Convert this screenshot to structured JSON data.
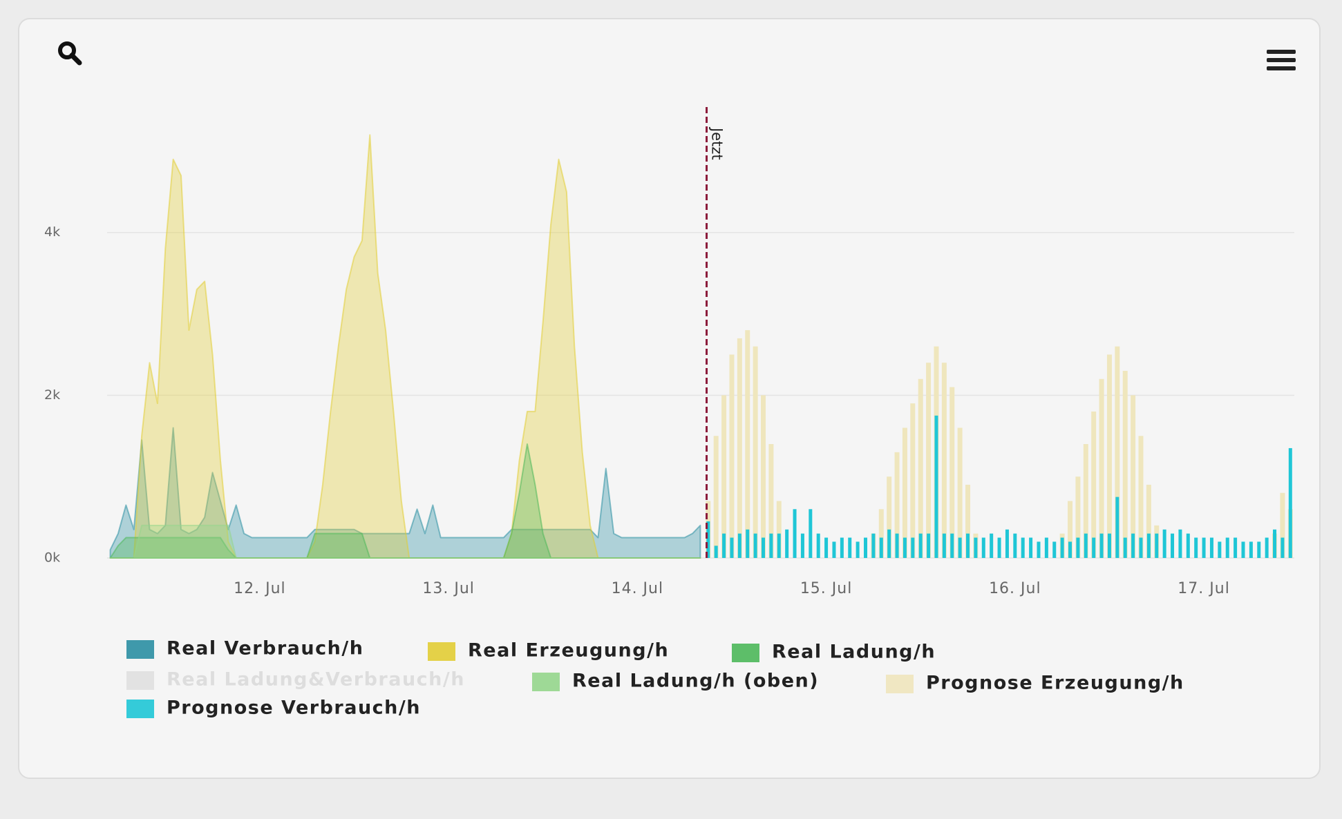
{
  "chart_data": {
    "type": "area",
    "xlim": [
      4.6,
      155.5
    ],
    "xticks": [
      {
        "value": 24,
        "label": "12. Jul"
      },
      {
        "value": 48,
        "label": "13. Jul"
      },
      {
        "value": 72,
        "label": "14. Jul"
      },
      {
        "value": 96,
        "label": "15. Jul"
      },
      {
        "value": 120,
        "label": "16. Jul"
      },
      {
        "value": 144,
        "label": "17. Jul"
      }
    ],
    "ylim": [
      0,
      5500
    ],
    "yticks": [
      {
        "value": 0,
        "label": "0k"
      },
      {
        "value": 2000,
        "label": "2k"
      },
      {
        "value": 4000,
        "label": "4k"
      }
    ],
    "grid": true,
    "plot_lines": [
      {
        "value": 80.8,
        "label": "Jetzt",
        "color": "#8b1a3a"
      }
    ],
    "series": [
      {
        "name": "Real Verbrauch/h",
        "type": "area",
        "color": "#2b8fa3",
        "x": [
          5,
          6,
          7,
          8,
          9,
          10,
          11,
          12,
          13,
          14,
          15,
          16,
          17,
          18,
          19,
          20,
          21,
          22,
          23,
          24,
          25,
          26,
          27,
          28,
          29,
          30,
          31,
          32,
          33,
          34,
          35,
          36,
          37,
          38,
          39,
          40,
          41,
          42,
          43,
          44,
          45,
          46,
          47,
          48,
          49,
          50,
          51,
          52,
          53,
          54,
          55,
          56,
          57,
          58,
          59,
          60,
          61,
          62,
          63,
          64,
          65,
          66,
          67,
          68,
          69,
          70,
          71,
          72,
          73,
          74,
          75,
          76,
          77,
          78,
          79,
          80
        ],
        "values": [
          100,
          300,
          650,
          350,
          1450,
          350,
          300,
          400,
          1600,
          350,
          300,
          350,
          500,
          1050,
          700,
          350,
          650,
          300,
          250,
          250,
          250,
          250,
          250,
          250,
          250,
          250,
          350,
          350,
          350,
          350,
          350,
          350,
          300,
          300,
          300,
          300,
          300,
          300,
          300,
          600,
          300,
          650,
          250,
          250,
          250,
          250,
          250,
          250,
          250,
          250,
          250,
          350,
          350,
          350,
          350,
          350,
          350,
          350,
          350,
          350,
          350,
          350,
          250,
          1100,
          300,
          250,
          250,
          250,
          250,
          250,
          250,
          250,
          250,
          250,
          300,
          400
        ]
      },
      {
        "name": "Real Erzeugung/h",
        "type": "area",
        "color": "#e2cd35",
        "x": [
          5,
          6,
          7,
          8,
          9,
          10,
          11,
          12,
          13,
          14,
          15,
          16,
          17,
          18,
          19,
          20,
          21,
          22,
          23,
          24,
          25,
          26,
          27,
          28,
          29,
          30,
          31,
          32,
          33,
          34,
          35,
          36,
          37,
          38,
          39,
          40,
          41,
          42,
          43,
          44,
          45,
          46,
          47,
          48,
          49,
          50,
          51,
          52,
          53,
          54,
          55,
          56,
          57,
          58,
          59,
          60,
          61,
          62,
          63,
          64,
          65,
          66,
          67,
          68,
          69,
          70,
          71,
          72,
          73,
          74,
          75,
          76,
          77,
          78,
          79,
          80
        ],
        "values": [
          0,
          0,
          0,
          0,
          1500,
          2400,
          1900,
          3800,
          4900,
          4700,
          2800,
          3300,
          3400,
          2500,
          1200,
          200,
          0,
          0,
          0,
          0,
          0,
          0,
          0,
          0,
          0,
          0,
          200,
          900,
          1800,
          2600,
          3300,
          3700,
          3900,
          5200,
          3500,
          2800,
          1800,
          700,
          0,
          0,
          0,
          0,
          0,
          0,
          0,
          0,
          0,
          0,
          0,
          0,
          0,
          300,
          1200,
          1800,
          1800,
          2900,
          4100,
          4900,
          4500,
          2600,
          1300,
          400,
          0,
          0,
          0,
          0,
          0,
          0,
          0,
          0,
          0,
          0,
          0,
          0,
          0,
          0
        ]
      },
      {
        "name": "Real Ladung/h",
        "type": "area",
        "color": "#4cb85a",
        "x": [
          5,
          6,
          7,
          8,
          9,
          10,
          11,
          12,
          13,
          14,
          15,
          16,
          17,
          18,
          19,
          20,
          21,
          22,
          23,
          24,
          25,
          26,
          27,
          28,
          29,
          30,
          31,
          32,
          33,
          34,
          35,
          36,
          37,
          38,
          39,
          40,
          41,
          42,
          43,
          44,
          45,
          46,
          47,
          48,
          49,
          50,
          51,
          52,
          53,
          54,
          55,
          56,
          57,
          58,
          59,
          60,
          61,
          62,
          63,
          64,
          65,
          66,
          67,
          68,
          69,
          70,
          71,
          72,
          73,
          74,
          75,
          76,
          77,
          78,
          79,
          80
        ],
        "values": [
          0,
          150,
          250,
          250,
          250,
          250,
          250,
          250,
          250,
          250,
          250,
          250,
          250,
          250,
          250,
          100,
          0,
          0,
          0,
          0,
          0,
          0,
          0,
          0,
          0,
          0,
          300,
          300,
          300,
          300,
          300,
          300,
          300,
          0,
          0,
          0,
          0,
          0,
          0,
          0,
          0,
          0,
          0,
          0,
          0,
          0,
          0,
          0,
          0,
          0,
          0,
          300,
          800,
          1400,
          900,
          300,
          0,
          0,
          0,
          0,
          0,
          0,
          0,
          0,
          0,
          0,
          0,
          0,
          0,
          0,
          0,
          0,
          0,
          0,
          0,
          0
        ]
      },
      {
        "name": "Real Ladung&Verbrauch/h",
        "type": "area",
        "color": "#cccccc",
        "visible": false
      },
      {
        "name": "Real Ladung/h (oben)",
        "type": "area",
        "color": "#95d68c",
        "x": [
          5,
          6,
          7,
          8,
          9,
          10,
          11,
          12,
          13,
          14,
          15,
          16,
          17,
          18,
          19,
          20,
          21,
          22,
          23,
          24,
          25,
          26,
          27,
          28,
          29,
          30,
          31,
          32,
          33,
          34,
          35,
          36,
          37,
          38,
          39,
          40,
          41,
          42,
          43,
          44,
          45,
          46,
          47,
          48,
          49,
          50,
          51,
          52,
          53,
          54,
          55,
          56,
          57,
          58,
          59,
          60,
          61,
          62,
          63,
          64,
          65,
          66,
          67,
          68,
          69,
          70,
          71,
          72,
          73,
          74,
          75,
          76,
          77,
          78,
          79,
          80
        ],
        "values": [
          0,
          0,
          0,
          0,
          400,
          400,
          400,
          400,
          400,
          400,
          400,
          400,
          400,
          400,
          400,
          400,
          0,
          0,
          0,
          0,
          0,
          0,
          0,
          0,
          0,
          0,
          0,
          0,
          0,
          0,
          0,
          0,
          0,
          0,
          0,
          0,
          0,
          0,
          0,
          0,
          0,
          0,
          0,
          0,
          0,
          0,
          0,
          0,
          0,
          0,
          0,
          0,
          0,
          0,
          0,
          0,
          0,
          0,
          0,
          0,
          0,
          0,
          0,
          0,
          0,
          0,
          0,
          0,
          0,
          0,
          0,
          0,
          0,
          0,
          0,
          0
        ]
      },
      {
        "name": "Prognose Erzeugung/h",
        "type": "column",
        "color": "#efe6bd",
        "x": [
          81,
          82,
          83,
          84,
          85,
          86,
          87,
          88,
          89,
          90,
          91,
          92,
          93,
          94,
          95,
          96,
          97,
          98,
          99,
          100,
          101,
          102,
          103,
          104,
          105,
          106,
          107,
          108,
          109,
          110,
          111,
          112,
          113,
          114,
          115,
          116,
          117,
          118,
          119,
          120,
          121,
          122,
          123,
          124,
          125,
          126,
          127,
          128,
          129,
          130,
          131,
          132,
          133,
          134,
          135,
          136,
          137,
          138,
          139,
          140,
          141,
          142,
          143,
          144,
          145,
          146,
          147,
          148,
          149,
          150,
          151,
          152,
          153,
          154,
          155
        ],
        "values": [
          700,
          1500,
          2000,
          2500,
          2700,
          2800,
          2600,
          2000,
          1400,
          700,
          0,
          0,
          0,
          0,
          0,
          0,
          0,
          0,
          0,
          0,
          0,
          300,
          600,
          1000,
          1300,
          1600,
          1900,
          2200,
          2400,
          2600,
          2400,
          2100,
          1600,
          900,
          300,
          0,
          0,
          0,
          0,
          0,
          0,
          0,
          0,
          0,
          0,
          300,
          700,
          1000,
          1400,
          1800,
          2200,
          2500,
          2600,
          2300,
          2000,
          1500,
          900,
          400,
          0,
          0,
          0,
          0,
          0,
          0,
          0,
          0,
          0,
          0,
          0,
          0,
          0,
          0,
          300,
          800,
          600
        ]
      },
      {
        "name": "Prognose Verbrauch/h",
        "type": "column",
        "color": "#1fc6d6",
        "x": [
          81,
          82,
          83,
          84,
          85,
          86,
          87,
          88,
          89,
          90,
          91,
          92,
          93,
          94,
          95,
          96,
          97,
          98,
          99,
          100,
          101,
          102,
          103,
          104,
          105,
          106,
          107,
          108,
          109,
          110,
          111,
          112,
          113,
          114,
          115,
          116,
          117,
          118,
          119,
          120,
          121,
          122,
          123,
          124,
          125,
          126,
          127,
          128,
          129,
          130,
          131,
          132,
          133,
          134,
          135,
          136,
          137,
          138,
          139,
          140,
          141,
          142,
          143,
          144,
          145,
          146,
          147,
          148,
          149,
          150,
          151,
          152,
          153,
          154,
          155
        ],
        "values": [
          450,
          150,
          300,
          250,
          300,
          350,
          300,
          250,
          300,
          300,
          350,
          600,
          300,
          600,
          300,
          250,
          200,
          250,
          250,
          200,
          250,
          300,
          250,
          350,
          300,
          250,
          250,
          300,
          300,
          1750,
          300,
          300,
          250,
          300,
          250,
          250,
          300,
          250,
          350,
          300,
          250,
          250,
          200,
          250,
          200,
          250,
          200,
          250,
          300,
          250,
          300,
          300,
          750,
          250,
          300,
          250,
          300,
          300,
          350,
          300,
          350,
          300,
          250,
          250,
          250,
          200,
          250,
          250,
          200,
          200,
          200,
          250,
          350,
          250,
          1350
        ]
      }
    ]
  }
}
